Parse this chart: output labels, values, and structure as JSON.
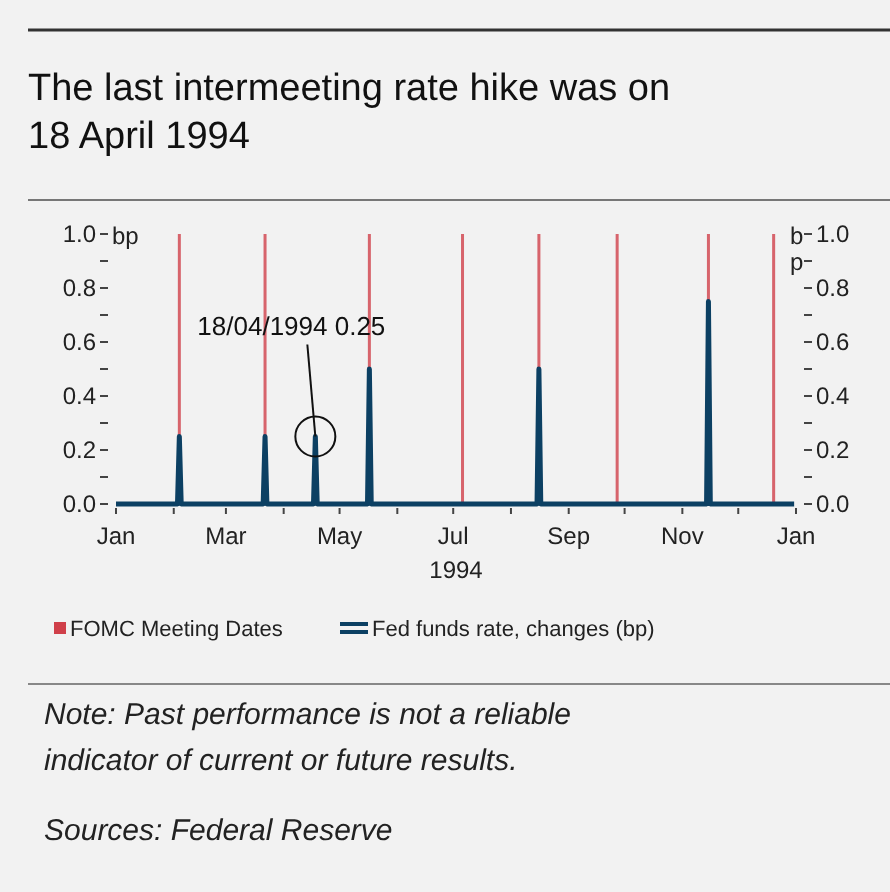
{
  "chart_data": {
    "type": "line",
    "title": "The last intermeeting rate hike was on 18 April 1994",
    "xlabel": "1994",
    "ylabel": "bp",
    "y2label": "bp",
    "xlim": [
      "1994-01-01",
      "1995-01-01"
    ],
    "xticks": [
      {
        "value": "1994-01-01",
        "label": "Jan"
      },
      {
        "value": "1994-02-01",
        "label": null
      },
      {
        "value": "1994-03-01",
        "label": "Mar"
      },
      {
        "value": "1994-04-01",
        "label": null
      },
      {
        "value": "1994-05-01",
        "label": "May"
      },
      {
        "value": "1994-06-01",
        "label": null
      },
      {
        "value": "1994-07-01",
        "label": "Jul"
      },
      {
        "value": "1994-08-01",
        "label": null
      },
      {
        "value": "1994-09-01",
        "label": "Sep"
      },
      {
        "value": "1994-10-01",
        "label": null
      },
      {
        "value": "1994-11-01",
        "label": "Nov"
      },
      {
        "value": "1994-12-01",
        "label": null
      },
      {
        "value": "1995-01-01",
        "label": "Jan"
      }
    ],
    "ylim": [
      0,
      1
    ],
    "yticks": [
      {
        "value": 0,
        "label": "0.0"
      },
      {
        "value": 0.1,
        "label": null
      },
      {
        "value": 0.2,
        "label": "0.2"
      },
      {
        "value": 0.3,
        "label": null
      },
      {
        "value": 0.4,
        "label": "0.4"
      },
      {
        "value": 0.5,
        "label": null
      },
      {
        "value": 0.6,
        "label": "0.6"
      },
      {
        "value": 0.7,
        "label": null
      },
      {
        "value": 0.8,
        "label": "0.8"
      },
      {
        "value": 0.9,
        "label": null
      },
      {
        "value": 1,
        "label": "1.0"
      }
    ],
    "y2lim": [
      0,
      1
    ],
    "y2ticks": [
      {
        "value": 0,
        "label": "0.0"
      },
      {
        "value": 0.1,
        "label": null
      },
      {
        "value": 0.2,
        "label": "0.2"
      },
      {
        "value": 0.3,
        "label": null
      },
      {
        "value": 0.4,
        "label": "0.4"
      },
      {
        "value": 0.5,
        "label": null
      },
      {
        "value": 0.6,
        "label": "0.6"
      },
      {
        "value": 0.7,
        "label": null
      },
      {
        "value": 0.8,
        "label": "0.8"
      },
      {
        "value": 0.9,
        "label": null
      },
      {
        "value": 1,
        "label": "1.0"
      }
    ],
    "series": [
      {
        "name": "FOMC Meeting Dates",
        "type": "bar",
        "color": "#d0404a",
        "x": [
          "1994-02-04",
          "1994-03-22",
          "1994-05-17",
          "1994-07-06",
          "1994-08-16",
          "1994-09-27",
          "1994-11-15",
          "1994-12-20"
        ],
        "values": [
          1,
          1,
          1,
          1,
          1,
          1,
          1,
          1
        ]
      },
      {
        "name": "Fed funds rate, changes (bp)",
        "color": "#0c4063",
        "x": [
          "1994-01-01",
          "1994-02-03",
          "1994-02-04",
          "1994-02-05",
          "1994-03-21",
          "1994-03-22",
          "1994-03-23",
          "1994-04-17",
          "1994-04-18",
          "1994-04-19",
          "1994-05-16",
          "1994-05-17",
          "1994-05-18",
          "1994-08-15",
          "1994-08-16",
          "1994-08-17",
          "1994-11-14",
          "1994-11-15",
          "1994-11-16",
          "1994-12-31"
        ],
        "values": [
          0,
          0,
          0.25,
          0,
          0,
          0.25,
          0,
          0,
          0.25,
          0,
          0,
          0.5,
          0,
          0,
          0.5,
          0,
          0,
          0.75,
          0,
          0
        ]
      }
    ],
    "annotations": [
      {
        "text": "18/04/1994 0.25",
        "x": "1994-04-18",
        "y": 0.25
      },
      "Note: Past performance is not a reliable indicator of current or future results.",
      "Sources: Federal Reserve"
    ],
    "legend": "bottom",
    "grid": false
  }
}
